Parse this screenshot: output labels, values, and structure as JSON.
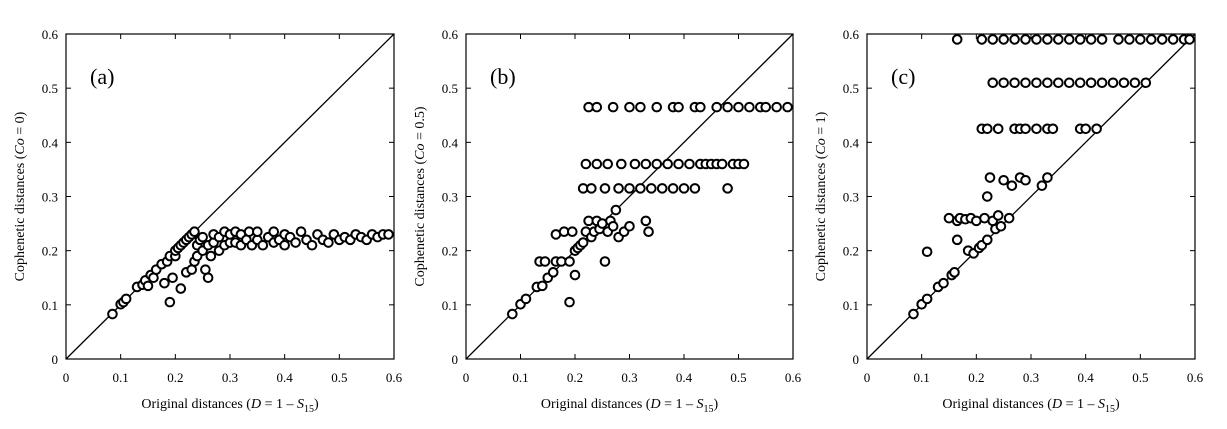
{
  "chart_data": [
    {
      "type": "scatter",
      "panel_label": "(a)",
      "xlabel": {
        "pre": "Original distances (",
        "var": "D",
        "mid": " = 1 – ",
        "svar": "S",
        "sub": "15",
        "post": ")"
      },
      "ylabel": {
        "pre": "Cophenetic distances (",
        "var": "Co",
        "post": " = 0)"
      },
      "xlim": [
        0,
        0.6
      ],
      "ylim": [
        0,
        0.6
      ],
      "xticks": [
        "0",
        "0.1",
        "0.2",
        "0.3",
        "0.4",
        "0.5",
        "0.6"
      ],
      "yticks": [
        "0",
        "0.1",
        "0.2",
        "0.3",
        "0.4",
        "0.5",
        "0.6"
      ],
      "diagonal": true,
      "points": [
        [
          0.085,
          0.083
        ],
        [
          0.1,
          0.101
        ],
        [
          0.105,
          0.105
        ],
        [
          0.11,
          0.111
        ],
        [
          0.13,
          0.133
        ],
        [
          0.14,
          0.137
        ],
        [
          0.145,
          0.145
        ],
        [
          0.15,
          0.135
        ],
        [
          0.155,
          0.155
        ],
        [
          0.16,
          0.15
        ],
        [
          0.165,
          0.165
        ],
        [
          0.175,
          0.175
        ],
        [
          0.18,
          0.14
        ],
        [
          0.185,
          0.18
        ],
        [
          0.19,
          0.105
        ],
        [
          0.19,
          0.19
        ],
        [
          0.195,
          0.15
        ],
        [
          0.2,
          0.19
        ],
        [
          0.2,
          0.2
        ],
        [
          0.205,
          0.205
        ],
        [
          0.21,
          0.13
        ],
        [
          0.21,
          0.21
        ],
        [
          0.215,
          0.215
        ],
        [
          0.22,
          0.16
        ],
        [
          0.22,
          0.22
        ],
        [
          0.225,
          0.225
        ],
        [
          0.23,
          0.165
        ],
        [
          0.23,
          0.23
        ],
        [
          0.235,
          0.18
        ],
        [
          0.235,
          0.235
        ],
        [
          0.24,
          0.19
        ],
        [
          0.24,
          0.21
        ],
        [
          0.245,
          0.22
        ],
        [
          0.25,
          0.2
        ],
        [
          0.25,
          0.225
        ],
        [
          0.255,
          0.165
        ],
        [
          0.26,
          0.15
        ],
        [
          0.26,
          0.21
        ],
        [
          0.265,
          0.19
        ],
        [
          0.27,
          0.215
        ],
        [
          0.27,
          0.23
        ],
        [
          0.28,
          0.2
        ],
        [
          0.28,
          0.225
        ],
        [
          0.29,
          0.21
        ],
        [
          0.29,
          0.235
        ],
        [
          0.3,
          0.215
        ],
        [
          0.3,
          0.23
        ],
        [
          0.31,
          0.215
        ],
        [
          0.31,
          0.235
        ],
        [
          0.32,
          0.21
        ],
        [
          0.32,
          0.23
        ],
        [
          0.33,
          0.22
        ],
        [
          0.335,
          0.235
        ],
        [
          0.34,
          0.21
        ],
        [
          0.35,
          0.22
        ],
        [
          0.35,
          0.235
        ],
        [
          0.36,
          0.21
        ],
        [
          0.37,
          0.225
        ],
        [
          0.38,
          0.215
        ],
        [
          0.38,
          0.235
        ],
        [
          0.39,
          0.22
        ],
        [
          0.4,
          0.21
        ],
        [
          0.4,
          0.23
        ],
        [
          0.41,
          0.225
        ],
        [
          0.42,
          0.215
        ],
        [
          0.43,
          0.235
        ],
        [
          0.44,
          0.22
        ],
        [
          0.45,
          0.21
        ],
        [
          0.46,
          0.23
        ],
        [
          0.47,
          0.22
        ],
        [
          0.48,
          0.215
        ],
        [
          0.49,
          0.23
        ],
        [
          0.5,
          0.22
        ],
        [
          0.51,
          0.225
        ],
        [
          0.52,
          0.22
        ],
        [
          0.53,
          0.23
        ],
        [
          0.54,
          0.225
        ],
        [
          0.55,
          0.22
        ],
        [
          0.56,
          0.23
        ],
        [
          0.57,
          0.225
        ],
        [
          0.58,
          0.23
        ],
        [
          0.59,
          0.23
        ]
      ]
    },
    {
      "type": "scatter",
      "panel_label": "(b)",
      "xlabel": {
        "pre": "Original distances (",
        "var": "D",
        "mid": " = 1 – ",
        "svar": "S",
        "sub": "15",
        "post": ")"
      },
      "ylabel": {
        "pre": "Cophenetic distances (",
        "var": "Co",
        "post": " = 0.5)"
      },
      "xlim": [
        0,
        0.6
      ],
      "ylim": [
        0,
        0.6
      ],
      "xticks": [
        "0",
        "0.1",
        "0.2",
        "0.3",
        "0.4",
        "0.5",
        "0.6"
      ],
      "yticks": [
        "0",
        "0.1",
        "0.2",
        "0.3",
        "0.4",
        "0.5",
        "0.6"
      ],
      "diagonal": true,
      "points": [
        [
          0.085,
          0.083
        ],
        [
          0.1,
          0.101
        ],
        [
          0.11,
          0.111
        ],
        [
          0.13,
          0.133
        ],
        [
          0.135,
          0.18
        ],
        [
          0.14,
          0.135
        ],
        [
          0.145,
          0.18
        ],
        [
          0.15,
          0.15
        ],
        [
          0.16,
          0.16
        ],
        [
          0.165,
          0.18
        ],
        [
          0.165,
          0.23
        ],
        [
          0.175,
          0.18
        ],
        [
          0.18,
          0.235
        ],
        [
          0.19,
          0.105
        ],
        [
          0.19,
          0.18
        ],
        [
          0.195,
          0.235
        ],
        [
          0.2,
          0.155
        ],
        [
          0.2,
          0.2
        ],
        [
          0.205,
          0.205
        ],
        [
          0.21,
          0.21
        ],
        [
          0.215,
          0.215
        ],
        [
          0.215,
          0.315
        ],
        [
          0.22,
          0.235
        ],
        [
          0.22,
          0.36
        ],
        [
          0.225,
          0.255
        ],
        [
          0.23,
          0.225
        ],
        [
          0.23,
          0.315
        ],
        [
          0.235,
          0.235
        ],
        [
          0.24,
          0.255
        ],
        [
          0.24,
          0.36
        ],
        [
          0.245,
          0.24
        ],
        [
          0.25,
          0.25
        ],
        [
          0.255,
          0.18
        ],
        [
          0.255,
          0.315
        ],
        [
          0.26,
          0.235
        ],
        [
          0.26,
          0.36
        ],
        [
          0.265,
          0.255
        ],
        [
          0.27,
          0.245
        ],
        [
          0.275,
          0.275
        ],
        [
          0.28,
          0.225
        ],
        [
          0.28,
          0.315
        ],
        [
          0.285,
          0.36
        ],
        [
          0.29,
          0.235
        ],
        [
          0.3,
          0.245
        ],
        [
          0.3,
          0.315
        ],
        [
          0.31,
          0.36
        ],
        [
          0.32,
          0.315
        ],
        [
          0.33,
          0.255
        ],
        [
          0.33,
          0.36
        ],
        [
          0.335,
          0.235
        ],
        [
          0.34,
          0.315
        ],
        [
          0.35,
          0.36
        ],
        [
          0.36,
          0.315
        ],
        [
          0.37,
          0.36
        ],
        [
          0.38,
          0.315
        ],
        [
          0.39,
          0.36
        ],
        [
          0.4,
          0.315
        ],
        [
          0.41,
          0.36
        ],
        [
          0.42,
          0.315
        ],
        [
          0.43,
          0.36
        ],
        [
          0.44,
          0.36
        ],
        [
          0.45,
          0.36
        ],
        [
          0.46,
          0.36
        ],
        [
          0.47,
          0.36
        ],
        [
          0.48,
          0.315
        ],
        [
          0.49,
          0.36
        ],
        [
          0.5,
          0.36
        ],
        [
          0.51,
          0.36
        ],
        [
          0.225,
          0.465
        ],
        [
          0.24,
          0.465
        ],
        [
          0.27,
          0.465
        ],
        [
          0.3,
          0.465
        ],
        [
          0.32,
          0.465
        ],
        [
          0.35,
          0.465
        ],
        [
          0.38,
          0.465
        ],
        [
          0.39,
          0.465
        ],
        [
          0.42,
          0.465
        ],
        [
          0.43,
          0.465
        ],
        [
          0.46,
          0.465
        ],
        [
          0.48,
          0.465
        ],
        [
          0.5,
          0.465
        ],
        [
          0.52,
          0.465
        ],
        [
          0.54,
          0.465
        ],
        [
          0.55,
          0.465
        ],
        [
          0.57,
          0.465
        ],
        [
          0.59,
          0.465
        ]
      ]
    },
    {
      "type": "scatter",
      "panel_label": "(c)",
      "xlabel": {
        "pre": "Original distances (",
        "var": "D",
        "mid": " = 1 – ",
        "svar": "S",
        "sub": "15",
        "post": ")"
      },
      "ylabel": {
        "pre": "Cophenetic distances (",
        "var": "Co",
        "post": " = 1)"
      },
      "xlim": [
        0,
        0.6
      ],
      "ylim": [
        0,
        0.6
      ],
      "xticks": [
        "0",
        "0.1",
        "0.2",
        "0.3",
        "0.4",
        "0.5",
        "0.6"
      ],
      "yticks": [
        "0",
        "0.1",
        "0.2",
        "0.3",
        "0.4",
        "0.5",
        "0.6"
      ],
      "diagonal": true,
      "points": [
        [
          0.085,
          0.083
        ],
        [
          0.1,
          0.101
        ],
        [
          0.11,
          0.111
        ],
        [
          0.11,
          0.198
        ],
        [
          0.13,
          0.133
        ],
        [
          0.14,
          0.14
        ],
        [
          0.15,
          0.26
        ],
        [
          0.155,
          0.155
        ],
        [
          0.16,
          0.16
        ],
        [
          0.165,
          0.255
        ],
        [
          0.165,
          0.22
        ],
        [
          0.17,
          0.26
        ],
        [
          0.18,
          0.258
        ],
        [
          0.185,
          0.2
        ],
        [
          0.19,
          0.26
        ],
        [
          0.195,
          0.195
        ],
        [
          0.2,
          0.255
        ],
        [
          0.205,
          0.205
        ],
        [
          0.21,
          0.21
        ],
        [
          0.215,
          0.26
        ],
        [
          0.22,
          0.22
        ],
        [
          0.22,
          0.3
        ],
        [
          0.225,
          0.335
        ],
        [
          0.23,
          0.255
        ],
        [
          0.235,
          0.24
        ],
        [
          0.24,
          0.265
        ],
        [
          0.245,
          0.245
        ],
        [
          0.25,
          0.33
        ],
        [
          0.26,
          0.26
        ],
        [
          0.265,
          0.32
        ],
        [
          0.28,
          0.335
        ],
        [
          0.29,
          0.33
        ],
        [
          0.32,
          0.32
        ],
        [
          0.33,
          0.335
        ],
        [
          0.21,
          0.425
        ],
        [
          0.22,
          0.425
        ],
        [
          0.24,
          0.425
        ],
        [
          0.27,
          0.425
        ],
        [
          0.28,
          0.425
        ],
        [
          0.29,
          0.425
        ],
        [
          0.31,
          0.425
        ],
        [
          0.33,
          0.425
        ],
        [
          0.34,
          0.425
        ],
        [
          0.39,
          0.425
        ],
        [
          0.4,
          0.425
        ],
        [
          0.42,
          0.425
        ],
        [
          0.23,
          0.51
        ],
        [
          0.25,
          0.51
        ],
        [
          0.27,
          0.51
        ],
        [
          0.29,
          0.51
        ],
        [
          0.31,
          0.51
        ],
        [
          0.33,
          0.51
        ],
        [
          0.35,
          0.51
        ],
        [
          0.37,
          0.51
        ],
        [
          0.39,
          0.51
        ],
        [
          0.41,
          0.51
        ],
        [
          0.43,
          0.51
        ],
        [
          0.45,
          0.51
        ],
        [
          0.47,
          0.51
        ],
        [
          0.49,
          0.51
        ],
        [
          0.51,
          0.51
        ],
        [
          0.165,
          0.59
        ],
        [
          0.21,
          0.59
        ],
        [
          0.23,
          0.59
        ],
        [
          0.25,
          0.59
        ],
        [
          0.27,
          0.59
        ],
        [
          0.29,
          0.59
        ],
        [
          0.31,
          0.59
        ],
        [
          0.33,
          0.59
        ],
        [
          0.35,
          0.59
        ],
        [
          0.37,
          0.59
        ],
        [
          0.39,
          0.59
        ],
        [
          0.41,
          0.59
        ],
        [
          0.43,
          0.59
        ],
        [
          0.46,
          0.59
        ],
        [
          0.48,
          0.59
        ],
        [
          0.5,
          0.59
        ],
        [
          0.52,
          0.59
        ],
        [
          0.54,
          0.59
        ],
        [
          0.56,
          0.59
        ],
        [
          0.58,
          0.59
        ],
        [
          0.59,
          0.59
        ]
      ]
    }
  ]
}
